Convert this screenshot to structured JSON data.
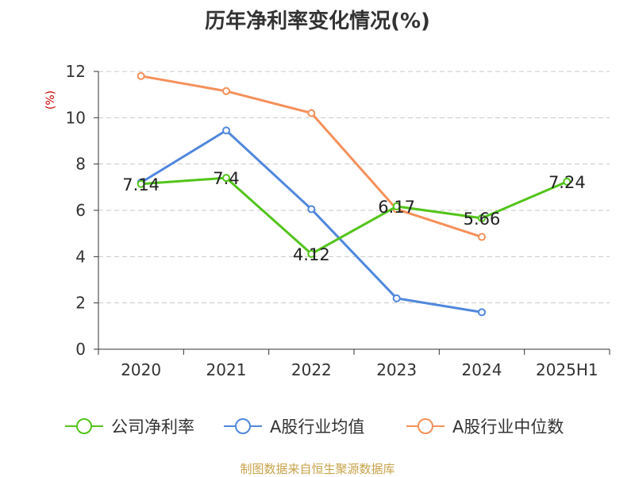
{
  "chart_data": {
    "type": "line",
    "title": "历年净利率变化情况(%)",
    "ylabel": "(%)",
    "xlabel": "",
    "ylim": [
      0,
      12
    ],
    "yticks": [
      0,
      2,
      4,
      6,
      8,
      10,
      12
    ],
    "categories": [
      "2020",
      "2021",
      "2022",
      "2023",
      "2024",
      "2025H1"
    ],
    "grid": true,
    "legend_position": "bottom",
    "series": [
      {
        "name": "公司净利率",
        "color": "#52c41a",
        "labeled": true,
        "values": [
          7.14,
          7.4,
          4.12,
          6.17,
          5.66,
          7.24
        ]
      },
      {
        "name": "A股行业均值",
        "color": "#5087dc",
        "labeled": false,
        "values": [
          7.2,
          9.45,
          6.05,
          2.2,
          1.6,
          null
        ]
      },
      {
        "name": "A股行业中位数",
        "color": "#f4905a",
        "labeled": false,
        "values": [
          11.8,
          11.15,
          10.2,
          6.05,
          4.85,
          null
        ]
      }
    ]
  },
  "source_note": "制图数据来自恒生聚源数据库"
}
